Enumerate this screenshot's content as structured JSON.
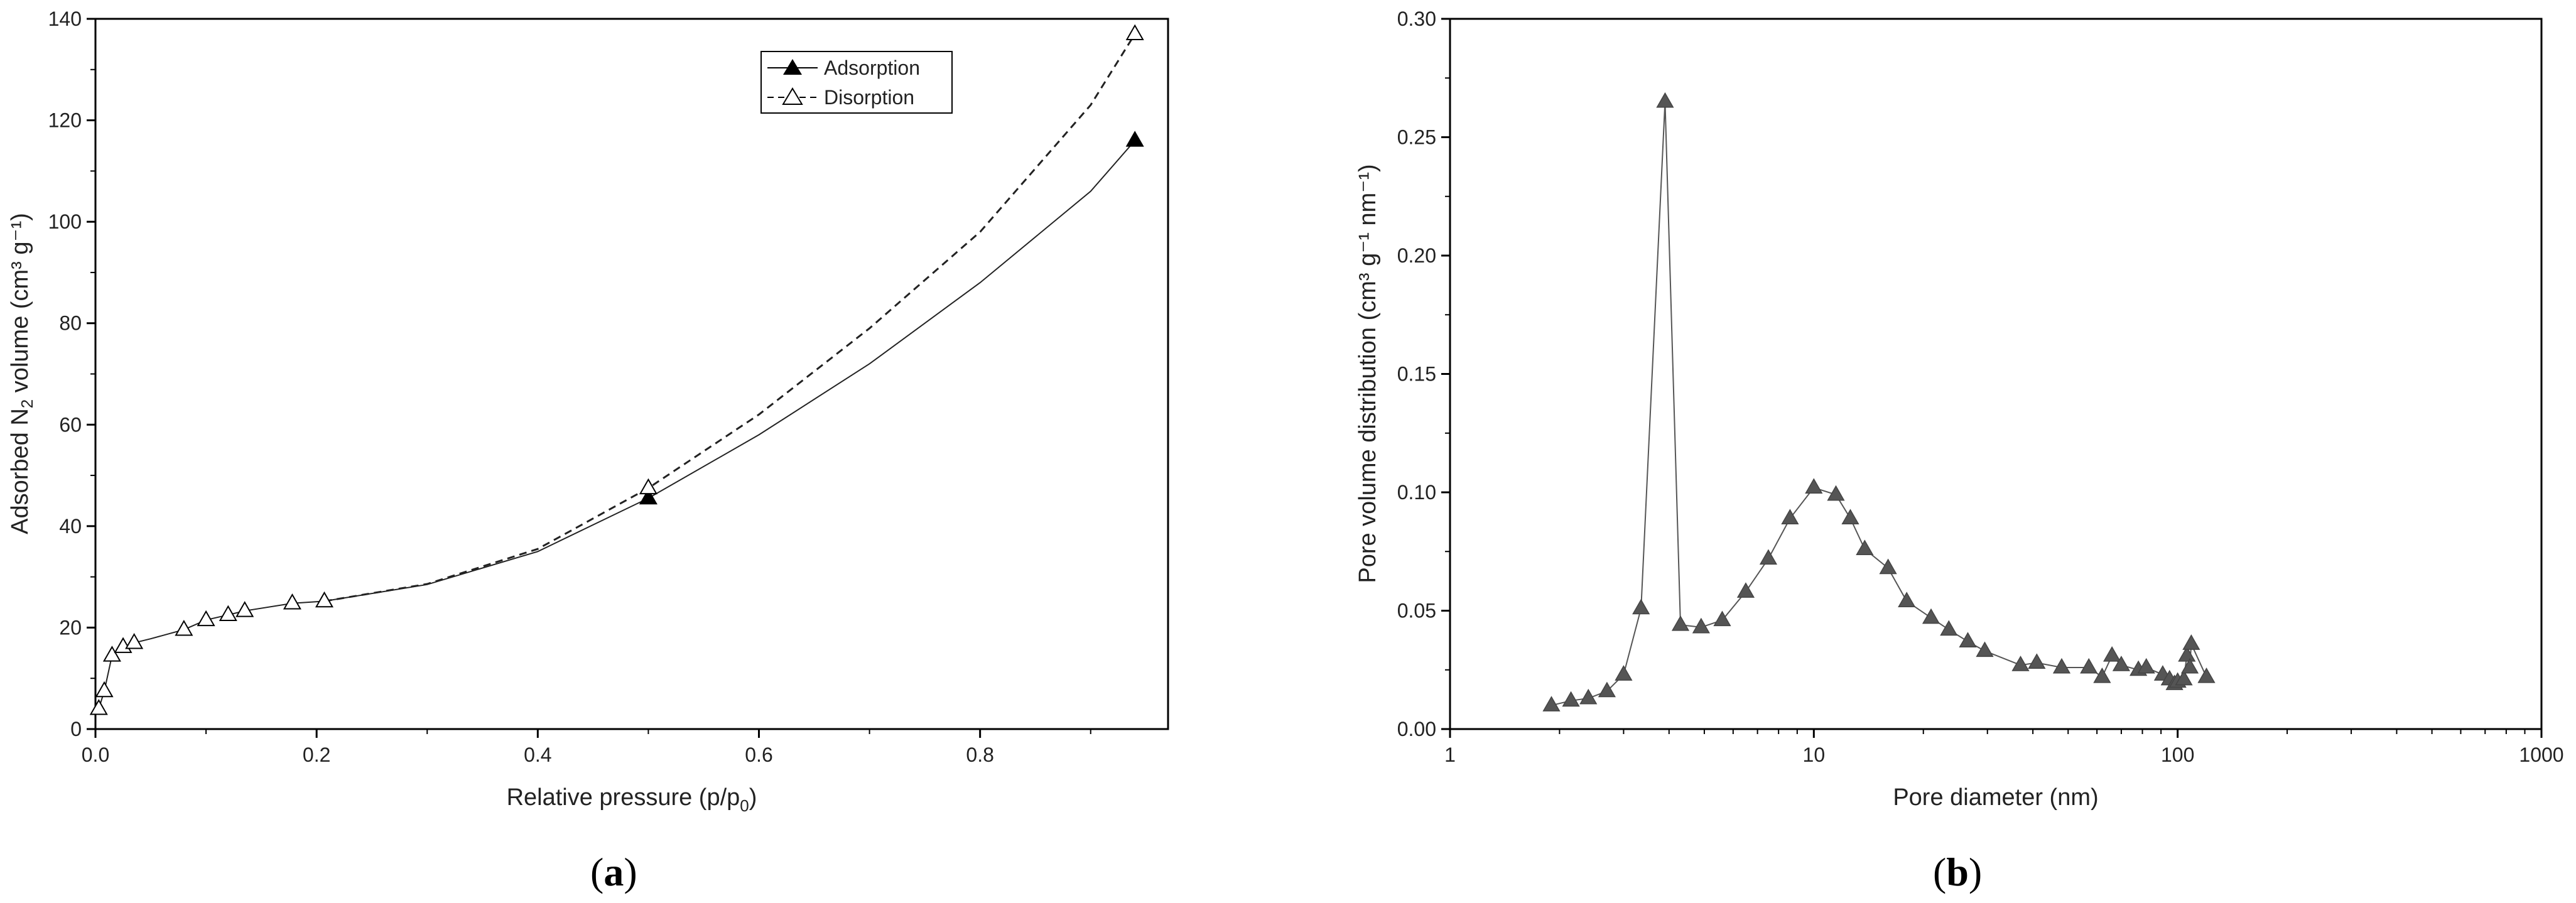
{
  "chart_data": [
    {
      "type": "line",
      "panel_label": "a",
      "xlabel": "Relative pressure (p/p",
      "xlabel_sub": "0",
      "xlabel_end": ")",
      "ylabel_prefix": "Adsorbed N",
      "ylabel_sub": "2",
      "ylabel_suffix": "  volume (cm³ g⁻¹)",
      "xlim": [
        0.0,
        0.97
      ],
      "ylim": [
        0,
        140
      ],
      "xticks": [
        0.0,
        0.2,
        0.4,
        0.6,
        0.8
      ],
      "xtick_labels": [
        "0.0",
        "0.2",
        "0.4",
        "0.6",
        "0.8"
      ],
      "yticks": [
        0,
        20,
        40,
        60,
        80,
        100,
        120,
        140
      ],
      "ytick_labels": [
        "0",
        "20",
        "40",
        "60",
        "80",
        "100",
        "120",
        "140"
      ],
      "legend": "top-right",
      "grid": false,
      "series": [
        {
          "name": "Adsorption",
          "marker": "filled-triangle",
          "line": "solid",
          "points": [
            [
              0.5,
              45.5
            ],
            [
              0.94,
              116
            ]
          ],
          "curve": [
            [
              0.003,
              4
            ],
            [
              0.008,
              7.5
            ],
            [
              0.015,
              14.5
            ],
            [
              0.025,
              16.2
            ],
            [
              0.035,
              17
            ],
            [
              0.05,
              17.8
            ],
            [
              0.08,
              19.6
            ],
            [
              0.1,
              21.5
            ],
            [
              0.12,
              22.5
            ],
            [
              0.135,
              23.3
            ],
            [
              0.178,
              24.8
            ],
            [
              0.207,
              25.2
            ],
            [
              0.3,
              28.5
            ],
            [
              0.4,
              35
            ],
            [
              0.5,
              45.5
            ],
            [
              0.6,
              58
            ],
            [
              0.7,
              72
            ],
            [
              0.8,
              88
            ],
            [
              0.9,
              106
            ],
            [
              0.94,
              116
            ]
          ]
        },
        {
          "name": "Disorption",
          "marker": "open-triangle",
          "line": "dashed",
          "points": [
            [
              0.003,
              4
            ],
            [
              0.008,
              7.5
            ],
            [
              0.015,
              14.5
            ],
            [
              0.025,
              16.2
            ],
            [
              0.035,
              17
            ],
            [
              0.08,
              19.6
            ],
            [
              0.1,
              21.5
            ],
            [
              0.12,
              22.5
            ],
            [
              0.135,
              23.3
            ],
            [
              0.178,
              24.8
            ],
            [
              0.207,
              25.2
            ],
            [
              0.5,
              47.5
            ],
            [
              0.94,
              137
            ]
          ],
          "curve": [
            [
              0.207,
              25.2
            ],
            [
              0.3,
              28.6
            ],
            [
              0.4,
              35.5
            ],
            [
              0.5,
              47.5
            ],
            [
              0.6,
              62
            ],
            [
              0.7,
              79
            ],
            [
              0.8,
              98
            ],
            [
              0.9,
              123
            ],
            [
              0.94,
              137
            ]
          ]
        }
      ]
    },
    {
      "type": "line",
      "panel_label": "b",
      "xlabel": "Pore diameter (nm)",
      "ylabel_prefix": "Pore volume distribution (cm³ g⁻¹ nm⁻¹)",
      "xscale": "log",
      "xlim": [
        1,
        1000
      ],
      "ylim": [
        0,
        0.3
      ],
      "xticks": [
        1,
        10,
        100,
        1000
      ],
      "xtick_labels": [
        "1",
        "10",
        "100",
        "1000"
      ],
      "yticks": [
        0.0,
        0.05,
        0.1,
        0.15,
        0.2,
        0.25,
        0.3
      ],
      "ytick_labels": [
        "0.00",
        "0.05",
        "0.10",
        "0.15",
        "0.20",
        "0.25",
        "0.30"
      ],
      "grid": false,
      "series": [
        {
          "marker": "filled-triangle-gray",
          "points": [
            [
              1.9,
              0.01
            ],
            [
              2.15,
              0.012
            ],
            [
              2.4,
              0.013
            ],
            [
              2.7,
              0.016
            ],
            [
              3.0,
              0.023
            ],
            [
              3.35,
              0.051
            ],
            [
              3.9,
              0.265
            ],
            [
              4.3,
              0.044
            ],
            [
              4.9,
              0.043
            ],
            [
              5.6,
              0.046
            ],
            [
              6.5,
              0.058
            ],
            [
              7.5,
              0.072
            ],
            [
              8.6,
              0.089
            ],
            [
              10.0,
              0.102
            ],
            [
              11.5,
              0.099
            ],
            [
              12.6,
              0.089
            ],
            [
              13.8,
              0.076
            ],
            [
              16.0,
              0.068
            ],
            [
              18.0,
              0.054
            ],
            [
              21.0,
              0.047
            ],
            [
              23.5,
              0.042
            ],
            [
              26.5,
              0.037
            ],
            [
              29.5,
              0.033
            ],
            [
              37.0,
              0.027
            ],
            [
              41.0,
              0.028
            ],
            [
              48.0,
              0.026
            ],
            [
              57.0,
              0.026
            ],
            [
              62.0,
              0.022
            ],
            [
              66.0,
              0.031
            ],
            [
              70.0,
              0.027
            ],
            [
              78.0,
              0.025
            ],
            [
              82.0,
              0.026
            ],
            [
              91.0,
              0.023
            ],
            [
              95.0,
              0.021
            ],
            [
              98.0,
              0.019
            ],
            [
              100.0,
              0.02
            ],
            [
              104.0,
              0.021
            ],
            [
              106.0,
              0.031
            ],
            [
              108.0,
              0.026
            ],
            [
              109.0,
              0.036
            ],
            [
              120.0,
              0.022
            ]
          ]
        }
      ]
    }
  ]
}
